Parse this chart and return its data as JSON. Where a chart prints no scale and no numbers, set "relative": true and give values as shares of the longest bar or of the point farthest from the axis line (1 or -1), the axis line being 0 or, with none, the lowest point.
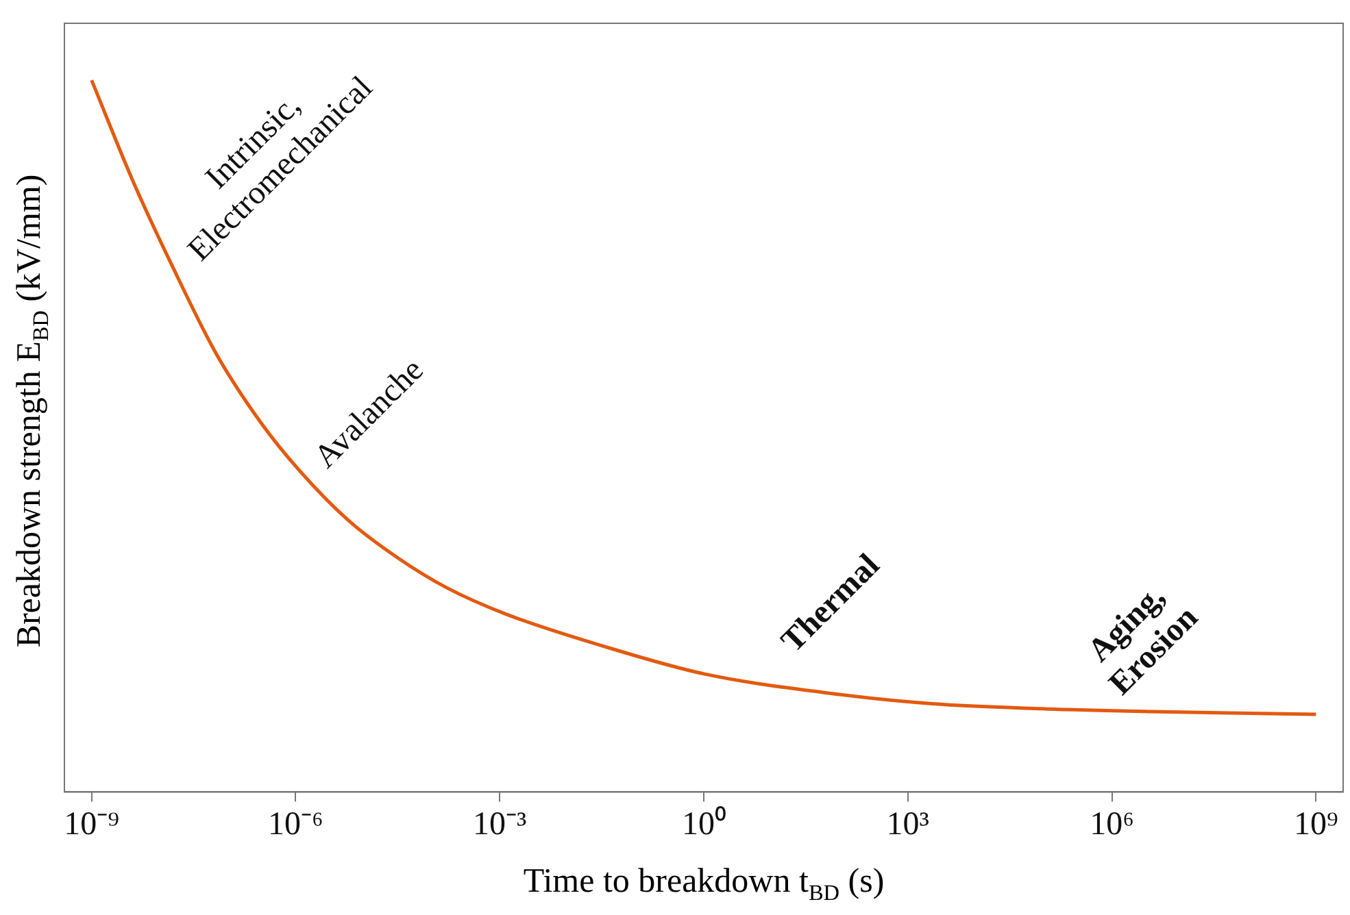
{
  "chart_data": {
    "type": "line",
    "xlabel": "Time to breakdown t$_{BD}$ (s)",
    "ylabel": "Breakdown strength E$_{BD}$ (kV/mm)",
    "log": "x",
    "relative": true,
    "marker": "none",
    "line_style": "solid",
    "grid": false,
    "legend": false,
    "x": [
      1e-09,
      3.98e-09,
      1.55e-08,
      6.76e-08,
      3.02e-07,
      1.15e-06,
      5.89e-06,
      3.16e-05,
      0.000166,
      0.00123,
      0.0331,
      1,
      56.2,
      2290,
      93300,
      3800000.0,
      1000000000.0
    ],
    "series": [
      {
        "color": "#e35a0f",
        "values": [
          1.0,
          0.86,
          0.738,
          0.616,
          0.52,
          0.451,
          0.382,
          0.329,
          0.287,
          0.25,
          0.205,
          0.166,
          0.14,
          0.124,
          0.117,
          0.113,
          0.109
        ]
      }
    ],
    "xlim": [
      3.98e-10,
      2510000000.0
    ],
    "xticks": [
      {
        "value": 1e-09,
        "label": "10⁻⁹"
      },
      {
        "value": 1e-06,
        "label": "10⁻⁶"
      },
      {
        "value": 0.001,
        "label": "10⁻³"
      },
      {
        "value": 1,
        "label": "10⁰"
      },
      {
        "value": 1000,
        "label": "10³"
      },
      {
        "value": 1000000.0,
        "label": "10⁶"
      },
      {
        "value": 1000000000.0,
        "label": "10⁹"
      }
    ],
    "annotations": [
      "Intrinsic,\nElectromechanical",
      "Avalanche",
      "Thermal",
      "Aging,\nErosion"
    ]
  }
}
